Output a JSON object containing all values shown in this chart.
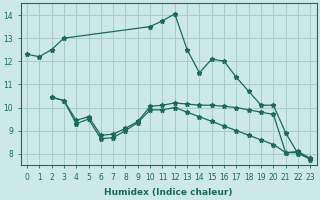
{
  "xlabel": "Humidex (Indice chaleur)",
  "bg_color": "#cce8e8",
  "grid_color": "#aacccc",
  "line_color": "#1a6b5a",
  "line1_x": [
    0,
    1,
    2,
    3,
    10,
    11,
    12,
    13,
    14,
    15,
    16,
    17,
    18,
    19,
    20,
    21,
    22,
    23
  ],
  "line1_y": [
    12.3,
    12.2,
    12.5,
    13.0,
    13.5,
    13.75,
    14.05,
    12.5,
    11.5,
    12.1,
    12.0,
    11.3,
    10.7,
    10.1,
    10.1,
    8.9,
    8.0,
    7.8
  ],
  "line2_x": [
    2,
    3,
    4,
    5,
    6,
    7,
    8,
    9,
    10,
    11,
    12,
    13,
    14,
    15,
    16,
    17,
    18,
    19,
    20,
    21,
    22,
    23
  ],
  "line2_y": [
    10.45,
    10.3,
    9.45,
    9.6,
    8.8,
    8.85,
    9.1,
    9.4,
    10.05,
    10.1,
    10.2,
    10.15,
    10.1,
    10.1,
    10.05,
    10.0,
    9.9,
    9.8,
    9.7,
    8.05,
    8.1,
    7.8
  ],
  "line3_x": [
    2,
    3,
    4,
    5,
    6,
    7,
    8,
    9,
    10,
    11,
    12,
    13,
    14,
    15,
    16,
    17,
    18,
    19,
    20,
    21,
    22,
    23
  ],
  "line3_y": [
    10.45,
    10.3,
    9.3,
    9.5,
    8.65,
    8.7,
    9.0,
    9.35,
    9.9,
    9.9,
    10.0,
    9.8,
    9.6,
    9.4,
    9.2,
    9.0,
    8.8,
    8.6,
    8.4,
    8.05,
    8.05,
    7.75
  ],
  "ylim": [
    7.5,
    14.5
  ],
  "xlim": [
    -0.5,
    23.5
  ],
  "yticks": [
    8,
    9,
    10,
    11,
    12,
    13,
    14
  ],
  "xticks": [
    0,
    1,
    2,
    3,
    4,
    5,
    6,
    7,
    8,
    9,
    10,
    11,
    12,
    13,
    14,
    15,
    16,
    17,
    18,
    19,
    20,
    21,
    22,
    23
  ],
  "xtick_labels": [
    "0",
    "1",
    "2",
    "3",
    "4",
    "5",
    "6",
    "7",
    "8",
    "9",
    "10",
    "11",
    "12",
    "13",
    "14",
    "15",
    "16",
    "17",
    "18",
    "19",
    "20",
    "21",
    "22",
    "23"
  ],
  "markersize": 3.5,
  "linewidth": 0.9,
  "xlabel_fontsize": 6.5,
  "tick_fontsize": 5.5
}
